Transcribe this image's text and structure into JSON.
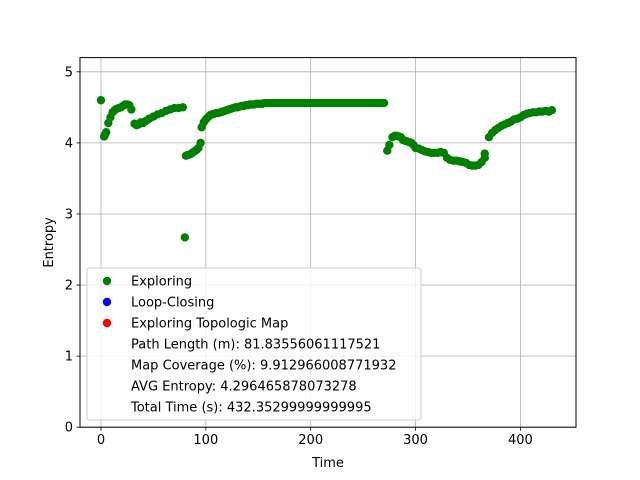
{
  "chart_data": {
    "type": "scatter",
    "xlabel": "Time",
    "ylabel": "Entropy",
    "xlim": [
      -20,
      453
    ],
    "ylim": [
      0,
      5.2
    ],
    "xticks": [
      0,
      100,
      200,
      300,
      400
    ],
    "yticks": [
      0,
      1,
      2,
      3,
      4,
      5
    ],
    "grid": true,
    "legend_placement": "lower-left",
    "series": [
      {
        "name": "Exploring",
        "color": "#008000",
        "marker": "circle",
        "segments": [
          {
            "x": [
              0
            ],
            "y": [
              4.6
            ]
          },
          {
            "x": [
              3,
              4,
              5,
              7,
              9,
              11,
              13,
              15,
              17,
              19,
              21,
              23,
              25,
              27,
              29
            ],
            "y": [
              4.09,
              4.12,
              4.15,
              4.28,
              4.36,
              4.43,
              4.46,
              4.48,
              4.49,
              4.5,
              4.52,
              4.54,
              4.54,
              4.53,
              4.47
            ]
          },
          {
            "x": [
              32,
              34,
              36,
              38,
              40,
              43,
              46,
              50,
              54,
              58,
              62,
              66,
              70,
              74,
              78
            ],
            "y": [
              4.27,
              4.25,
              4.26,
              4.29,
              4.28,
              4.31,
              4.34,
              4.37,
              4.4,
              4.42,
              4.45,
              4.47,
              4.49,
              4.49,
              4.5
            ]
          },
          {
            "x": [
              80
            ],
            "y": [
              2.67
            ]
          },
          {
            "x": [
              81,
              83,
              85,
              87,
              89,
              91,
              93,
              95
            ],
            "y": [
              3.82,
              3.83,
              3.84,
              3.86,
              3.88,
              3.9,
              3.93,
              4.0
            ]
          },
          {
            "x": [
              96,
              98,
              100,
              102,
              104,
              106,
              108,
              110,
              112,
              114,
              116,
              118,
              120,
              122,
              124,
              126,
              128,
              130,
              132,
              134,
              136,
              138,
              140,
              142,
              144,
              146,
              148,
              150,
              152,
              154,
              156,
              158,
              160
            ],
            "y": [
              4.22,
              4.29,
              4.33,
              4.36,
              4.39,
              4.4,
              4.41,
              4.42,
              4.42,
              4.43,
              4.44,
              4.45,
              4.46,
              4.47,
              4.48,
              4.49,
              4.5,
              4.5,
              4.51,
              4.52,
              4.52,
              4.53,
              4.53,
              4.54,
              4.54,
              4.54,
              4.55,
              4.55,
              4.55,
              4.55,
              4.56,
              4.56,
              4.56
            ]
          },
          {
            "x": [
              162,
              164,
              166,
              168,
              170,
              172,
              174,
              176,
              178,
              180,
              182,
              184,
              186,
              188,
              190,
              192,
              194,
              196,
              198,
              200,
              202,
              204,
              206,
              208,
              210,
              212,
              214,
              216,
              218,
              220,
              222,
              224,
              226,
              228,
              230,
              232,
              234,
              236,
              238,
              240,
              242,
              244,
              246,
              248,
              250,
              252,
              254,
              256,
              258,
              260,
              262,
              264,
              266,
              268,
              270
            ],
            "y": [
              4.56,
              4.56,
              4.56,
              4.56,
              4.56,
              4.56,
              4.56,
              4.56,
              4.56,
              4.56,
              4.56,
              4.56,
              4.56,
              4.56,
              4.56,
              4.56,
              4.56,
              4.56,
              4.56,
              4.56,
              4.56,
              4.56,
              4.56,
              4.56,
              4.56,
              4.56,
              4.56,
              4.56,
              4.56,
              4.56,
              4.56,
              4.56,
              4.56,
              4.56,
              4.56,
              4.56,
              4.56,
              4.56,
              4.56,
              4.56,
              4.56,
              4.56,
              4.56,
              4.56,
              4.56,
              4.56,
              4.56,
              4.56,
              4.56,
              4.56,
              4.56,
              4.56,
              4.56,
              4.56,
              4.56
            ]
          },
          {
            "x": [
              273,
              275,
              278,
              280,
              282,
              284,
              286,
              288,
              290,
              292,
              294,
              296,
              298,
              300
            ],
            "y": [
              3.89,
              3.97,
              4.08,
              4.1,
              4.1,
              4.09,
              4.08,
              4.04,
              4.03,
              4.02,
              4.01,
              4.0,
              3.97,
              3.93
            ]
          },
          {
            "x": [
              303,
              306,
              309,
              312,
              315,
              318,
              321,
              324,
              327,
              330,
              333,
              336,
              339,
              342,
              345,
              348,
              351,
              354,
              357,
              360,
              363,
              366
            ],
            "y": [
              3.92,
              3.9,
              3.88,
              3.87,
              3.86,
              3.86,
              3.86,
              3.87,
              3.86,
              3.79,
              3.76,
              3.75,
              3.75,
              3.74,
              3.73,
              3.72,
              3.69,
              3.68,
              3.68,
              3.69,
              3.73,
              3.79
            ]
          },
          {
            "x": [
              366,
              370,
              373,
              376,
              379,
              382,
              385,
              388,
              391,
              394,
              397,
              400,
              403,
              406,
              409,
              412,
              415,
              418,
              421,
              424,
              427,
              430
            ],
            "y": [
              3.85,
              4.08,
              4.14,
              4.18,
              4.21,
              4.24,
              4.26,
              4.28,
              4.3,
              4.33,
              4.34,
              4.36,
              4.39,
              4.41,
              4.42,
              4.43,
              4.43,
              4.44,
              4.44,
              4.45,
              4.44,
              4.46
            ]
          }
        ]
      },
      {
        "name": "Loop-Closing",
        "color": "#0000ff",
        "marker": "circle",
        "segments": []
      },
      {
        "name": "Exploring Topologic Map",
        "color": "#ff0000",
        "marker": "circle",
        "segments": []
      }
    ],
    "legend_text_entries": [
      "Path Length (m): 81.83556061117521",
      "Map Coverage (%): 9.912966008771932",
      "AVG Entropy: 4.296465878073278",
      "Total Time (s): 432.35299999999995"
    ]
  }
}
